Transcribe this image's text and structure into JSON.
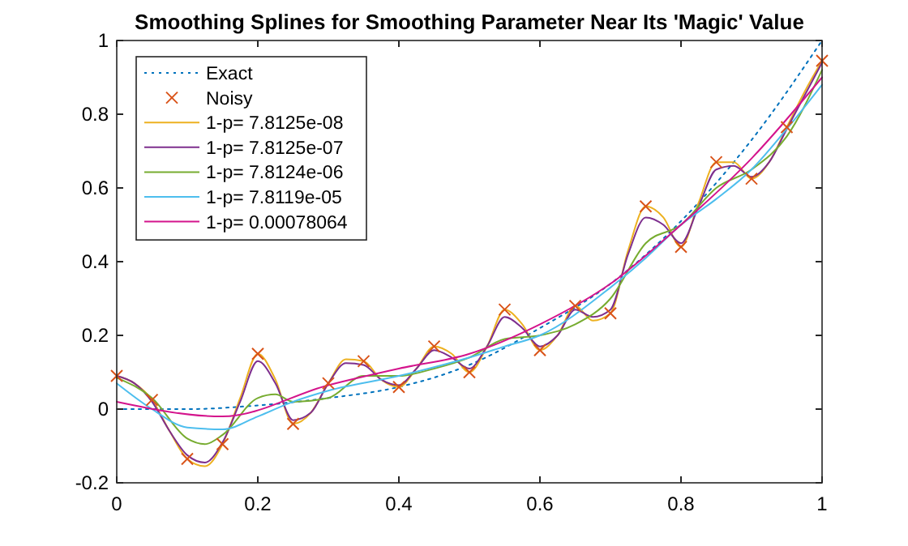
{
  "chart_data": {
    "type": "line",
    "title": "Smoothing Splines for Smoothing Parameter Near Its 'Magic' Value",
    "xlim": [
      0,
      1
    ],
    "ylim": [
      -0.2,
      1
    ],
    "xticks": [
      0,
      0.2,
      0.4,
      0.6,
      0.8,
      1
    ],
    "yticks": [
      -0.2,
      0,
      0.2,
      0.4,
      0.6,
      0.8,
      1
    ],
    "legend": "top left",
    "grid": false,
    "series": [
      {
        "name": "Exact",
        "color": "#0072bd",
        "line_style": "dotted",
        "x": [
          0,
          0.1,
          0.2,
          0.3,
          0.4,
          0.5,
          0.6,
          0.7,
          0.8,
          0.9,
          1
        ],
        "values": [
          0,
          0,
          0.01,
          0.03,
          0.06,
          0.12,
          0.22,
          0.34,
          0.51,
          0.73,
          1
        ]
      },
      {
        "name": "Noisy",
        "type": "scatter",
        "marker": "cross",
        "color": "#d95319",
        "x": [
          0,
          0.05,
          0.1,
          0.15,
          0.2,
          0.25,
          0.3,
          0.35,
          0.4,
          0.45,
          0.5,
          0.55,
          0.6,
          0.65,
          0.7,
          0.75,
          0.8,
          0.85,
          0.9,
          0.95,
          1
        ],
        "values": [
          0.09,
          0.025,
          -0.135,
          -0.095,
          0.15,
          -0.04,
          0.07,
          0.13,
          0.06,
          0.17,
          0.1,
          0.27,
          0.16,
          0.28,
          0.26,
          0.55,
          0.44,
          0.67,
          0.625,
          0.765,
          0.945
        ]
      },
      {
        "name": "1-p= 7.8125e-08",
        "color": "#edb120",
        "x": [
          0,
          0.025,
          0.05,
          0.075,
          0.1,
          0.125,
          0.15,
          0.175,
          0.2,
          0.225,
          0.25,
          0.275,
          0.3,
          0.325,
          0.35,
          0.375,
          0.4,
          0.425,
          0.45,
          0.475,
          0.5,
          0.525,
          0.55,
          0.575,
          0.6,
          0.625,
          0.65,
          0.675,
          0.7,
          0.725,
          0.75,
          0.775,
          0.8,
          0.825,
          0.85,
          0.875,
          0.9,
          0.925,
          0.95,
          0.975,
          1
        ],
        "values": [
          0.09,
          0.07,
          0.025,
          -0.06,
          -0.135,
          -0.155,
          -0.095,
          0.03,
          0.15,
          0.08,
          -0.04,
          -0.01,
          0.07,
          0.135,
          0.13,
          0.08,
          0.06,
          0.11,
          0.17,
          0.15,
          0.1,
          0.17,
          0.27,
          0.23,
          0.16,
          0.2,
          0.28,
          0.24,
          0.26,
          0.43,
          0.55,
          0.52,
          0.44,
          0.56,
          0.67,
          0.67,
          0.625,
          0.67,
          0.765,
          0.86,
          0.945
        ]
      },
      {
        "name": "1-p= 7.8125e-07",
        "color": "#7e2f8e",
        "x": [
          0,
          0.025,
          0.05,
          0.075,
          0.1,
          0.125,
          0.15,
          0.175,
          0.2,
          0.225,
          0.25,
          0.275,
          0.3,
          0.325,
          0.35,
          0.375,
          0.4,
          0.425,
          0.45,
          0.475,
          0.5,
          0.525,
          0.55,
          0.575,
          0.6,
          0.625,
          0.65,
          0.675,
          0.7,
          0.725,
          0.75,
          0.775,
          0.8,
          0.825,
          0.85,
          0.875,
          0.9,
          0.925,
          0.95,
          0.975,
          1
        ],
        "values": [
          0.09,
          0.07,
          0.02,
          -0.06,
          -0.125,
          -0.145,
          -0.09,
          0.02,
          0.13,
          0.07,
          -0.03,
          -0.01,
          0.07,
          0.125,
          0.12,
          0.08,
          0.065,
          0.11,
          0.16,
          0.14,
          0.11,
          0.17,
          0.25,
          0.22,
          0.17,
          0.2,
          0.27,
          0.25,
          0.27,
          0.42,
          0.52,
          0.5,
          0.45,
          0.55,
          0.65,
          0.66,
          0.63,
          0.67,
          0.76,
          0.85,
          0.94
        ]
      },
      {
        "name": "1-p= 7.8124e-06",
        "color": "#77ac30",
        "x": [
          0,
          0.05,
          0.1,
          0.125,
          0.15,
          0.2,
          0.225,
          0.25,
          0.3,
          0.35,
          0.4,
          0.45,
          0.5,
          0.55,
          0.6,
          0.65,
          0.7,
          0.75,
          0.8,
          0.85,
          0.9,
          0.95,
          1
        ],
        "values": [
          0.085,
          0.03,
          -0.08,
          -0.095,
          -0.07,
          0.03,
          0.04,
          0.02,
          0.03,
          0.09,
          0.09,
          0.11,
          0.14,
          0.19,
          0.2,
          0.23,
          0.3,
          0.45,
          0.5,
          0.6,
          0.65,
          0.74,
          0.92
        ]
      },
      {
        "name": "1-p= 7.8119e-05",
        "color": "#4dbeee",
        "x": [
          0,
          0.05,
          0.1,
          0.15,
          0.2,
          0.25,
          0.3,
          0.4,
          0.5,
          0.55,
          0.6,
          0.7,
          0.75,
          0.8,
          0.85,
          0.9,
          0.95,
          1
        ],
        "values": [
          0.07,
          0,
          -0.05,
          -0.055,
          -0.02,
          0.02,
          0.05,
          0.09,
          0.14,
          0.17,
          0.2,
          0.33,
          0.41,
          0.5,
          0.57,
          0.65,
          0.76,
          0.88
        ]
      },
      {
        "name": "1-p= 0.00078064",
        "color": "#d4148c",
        "x": [
          0,
          0.15,
          0.3,
          0.4,
          0.5,
          0.6,
          0.7,
          0.8,
          0.9,
          1
        ],
        "values": [
          0.02,
          -0.02,
          0.065,
          0.11,
          0.15,
          0.23,
          0.34,
          0.5,
          0.68,
          0.9
        ]
      }
    ]
  }
}
